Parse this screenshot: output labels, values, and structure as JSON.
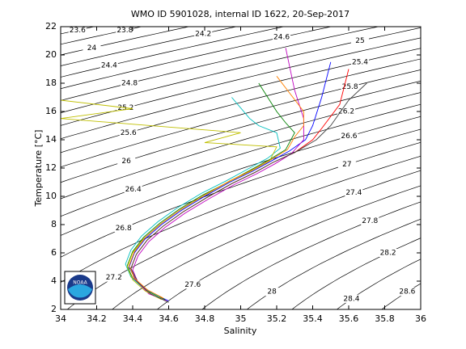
{
  "chart_data": {
    "type": "ts-diagram",
    "title": "WMO ID 5901028, internal ID 1622, 20-Sep-2017",
    "x_label": "Salinity",
    "y_label": "Temperature [°C]",
    "xlim": [
      34,
      36
    ],
    "ylim": [
      2,
      22
    ],
    "xticks": [
      34,
      34.2,
      34.4,
      34.6,
      34.8,
      35,
      35.2,
      35.4,
      35.6,
      35.8,
      36
    ],
    "yticks": [
      2,
      4,
      6,
      8,
      10,
      12,
      14,
      16,
      18,
      20,
      22
    ],
    "grid": false,
    "logo_text": "NOAA",
    "contours": {
      "color": "#000000",
      "levels": [
        23.6,
        23.8,
        24,
        24.2,
        24.4,
        24.6,
        24.8,
        25,
        25.2,
        25.4,
        25.6,
        25.8,
        26,
        26.2,
        26.4,
        26.6,
        26.8,
        27,
        27.2,
        27.4,
        27.6,
        27.8,
        28,
        28.2,
        28.4,
        28.6
      ]
    },
    "series": [
      {
        "color": "#0000ff",
        "x": [
          34.6,
          34.5,
          34.42,
          34.38,
          34.41,
          34.47,
          34.56,
          34.67,
          34.8,
          34.94,
          35.07,
          35.17,
          35.27,
          35.36,
          35.4,
          35.45,
          35.5
        ],
        "values": [
          2.6,
          3.2,
          4,
          5,
          6,
          7,
          8,
          9,
          10,
          11,
          11.8,
          12.5,
          13.2,
          14,
          15,
          17,
          19.5
        ]
      },
      {
        "color": "#008000",
        "x": [
          34.58,
          34.48,
          34.4,
          34.37,
          34.4,
          34.46,
          34.55,
          34.66,
          34.79,
          34.93,
          35.06,
          35.16,
          35.25,
          35.3,
          35.25,
          35.2,
          35.1
        ],
        "values": [
          2.7,
          3.3,
          4.2,
          5.1,
          6.1,
          7.1,
          8.1,
          9.1,
          10.1,
          11,
          11.9,
          12.6,
          13.3,
          14.5,
          15.2,
          16,
          18
        ]
      },
      {
        "color": "#ff0000",
        "x": [
          34.57,
          34.47,
          34.41,
          34.39,
          34.42,
          34.48,
          34.57,
          34.68,
          34.81,
          34.95,
          35.08,
          35.18,
          35.3,
          35.4,
          35.45,
          35.55,
          35.6
        ],
        "values": [
          2.8,
          3.4,
          4.1,
          4.9,
          5.9,
          6.9,
          7.9,
          8.9,
          9.9,
          10.9,
          11.7,
          12.4,
          13.1,
          14,
          14.8,
          16.5,
          19
        ]
      },
      {
        "color": "#00bfbf",
        "x": [
          34.55,
          34.46,
          34.39,
          34.36,
          34.39,
          34.45,
          34.54,
          34.65,
          34.78,
          34.92,
          35.05,
          35.15,
          35.22,
          35.2,
          35.1,
          35.05,
          34.95
        ],
        "values": [
          2.9,
          3.5,
          4.3,
          5.2,
          6.2,
          7.2,
          8.2,
          9.2,
          10.2,
          11.1,
          12,
          12.7,
          13.4,
          14.5,
          15,
          15.5,
          17
        ]
      },
      {
        "color": "#bf00bf",
        "x": [
          34.59,
          34.49,
          34.43,
          34.4,
          34.43,
          34.49,
          34.58,
          34.69,
          34.82,
          34.96,
          35.09,
          35.19,
          35.28,
          35.35,
          35.35,
          35.3,
          35.25
        ],
        "values": [
          2.6,
          3.1,
          3.9,
          4.8,
          5.8,
          6.8,
          7.8,
          8.8,
          9.8,
          10.8,
          11.6,
          12.3,
          13,
          14,
          15.5,
          17.5,
          20.5
        ]
      },
      {
        "color": "#bfbf00",
        "x": [
          34.56,
          34.47,
          34.4,
          34.37,
          34.4,
          34.46,
          34.55,
          34.66,
          34.79,
          34.93,
          35.06,
          35.16,
          35.2,
          34.8,
          35.0,
          34.0,
          34.4,
          34.0
        ],
        "values": [
          2.7,
          3.3,
          4.1,
          5,
          6,
          7,
          8,
          9,
          10,
          11,
          11.8,
          12.5,
          13.5,
          13.8,
          14.5,
          15.5,
          16.2,
          16.8
        ]
      },
      {
        "color": "#404040",
        "x": [
          34.6,
          34.5,
          34.43,
          34.39,
          34.42,
          34.48,
          34.57,
          34.68,
          34.81,
          34.95,
          35.08,
          35.18,
          35.3,
          35.42,
          35.5,
          35.6,
          35.7
        ],
        "values": [
          2.5,
          3.1,
          3.9,
          4.9,
          5.9,
          6.9,
          7.9,
          8.9,
          9.9,
          10.9,
          11.7,
          12.4,
          13.1,
          14,
          15,
          16.8,
          18
        ]
      },
      {
        "color": "#ff8000",
        "x": [
          34.57,
          34.48,
          34.41,
          34.38,
          34.41,
          34.47,
          34.56,
          34.67,
          34.8,
          34.94,
          35.07,
          35.17,
          35.26,
          35.3,
          35.35,
          35.35,
          35.2
        ],
        "values": [
          2.8,
          3.4,
          4.2,
          5.1,
          6.1,
          7.1,
          8.1,
          9.1,
          10.1,
          11.1,
          11.9,
          12.6,
          13.3,
          14.2,
          15,
          16,
          18.5
        ]
      }
    ]
  }
}
